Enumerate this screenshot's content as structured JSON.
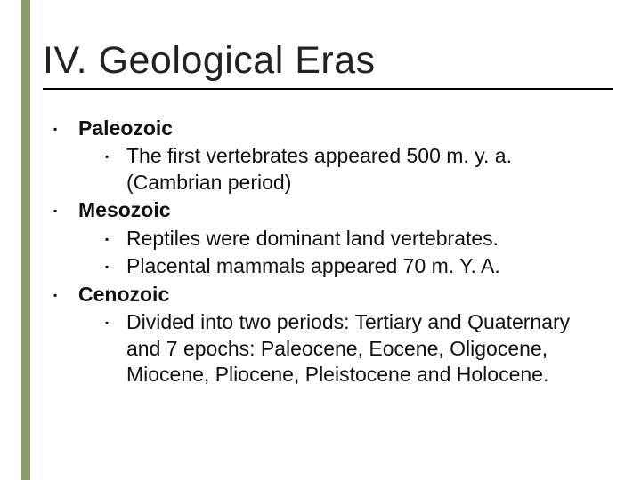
{
  "title": "IV. Geological Eras",
  "accent_color": "#8a9b6e",
  "text_color": "#111111",
  "background_color": "#ffffff",
  "title_fontsize": 43,
  "body_fontsize": 23,
  "eras": [
    {
      "name": "Paleozoic",
      "points": [
        "The first vertebrates appeared 500 m. y. a. (Cambrian period)"
      ]
    },
    {
      "name": "Mesozoic",
      "points": [
        "Reptiles were dominant land vertebrates.",
        "Placental mammals appeared 70 m. Y. A."
      ]
    },
    {
      "name": "Cenozoic",
      "points": [
        "Divided into two periods: Tertiary and Quaternary and  7 epochs: Paleocene, Eocene, Oligocene, Miocene, Pliocene, Pleistocene and Holocene."
      ]
    }
  ]
}
